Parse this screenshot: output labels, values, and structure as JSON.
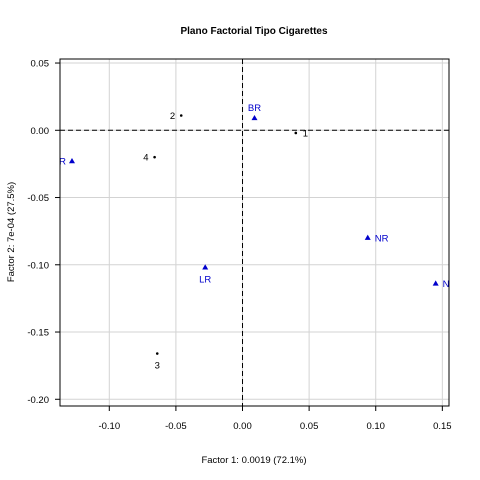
{
  "chart_data": {
    "type": "scatter",
    "title": "Plano Factorial Tipo Cigarettes",
    "xlabel": "Factor 1: 0.0019 (72.1%)",
    "ylabel": "Factor 2: 7e-04 (27.5%)",
    "xlim": [
      -0.137,
      0.155
    ],
    "ylim": [
      -0.205,
      0.053
    ],
    "xticks": [
      -0.1,
      -0.05,
      0.0,
      0.05,
      0.1,
      0.15
    ],
    "xtick_labels": [
      "-0.10",
      "-0.05",
      "0.00",
      "0.05",
      "0.10",
      "0.15"
    ],
    "yticks": [
      0.05,
      0.0,
      -0.05,
      -0.1,
      -0.15,
      -0.2
    ],
    "ytick_labels": [
      "0.05",
      "0.00",
      "-0.05",
      "-0.10",
      "-0.15",
      "-0.20"
    ],
    "grid": true,
    "reference_lines": {
      "x": 0,
      "y": 0,
      "style": "dashed"
    },
    "colors": {
      "rows": "#000000",
      "columns": "#0000cc",
      "grid": "#d3d3d3"
    },
    "series": [
      {
        "marker": "dot",
        "color": "#000000",
        "points": [
          {
            "label": "1",
            "x": 0.04,
            "y": -0.002,
            "label_pos": "right"
          },
          {
            "label": "2",
            "x": -0.046,
            "y": 0.011,
            "label_pos": "left"
          },
          {
            "label": "3",
            "x": -0.064,
            "y": -0.166,
            "label_pos": "below"
          },
          {
            "label": "4",
            "x": -0.066,
            "y": -0.02,
            "label_pos": "left"
          }
        ]
      },
      {
        "marker": "triangle",
        "color": "#0000cc",
        "points": [
          {
            "label": "BR",
            "x": 0.009,
            "y": 0.009,
            "label_pos": "above"
          },
          {
            "label": "R",
            "x": -0.128,
            "y": -0.023,
            "label_pos": "left"
          },
          {
            "label": "LR",
            "x": -0.028,
            "y": -0.102,
            "label_pos": "below"
          },
          {
            "label": "NR",
            "x": 0.094,
            "y": -0.08,
            "label_pos": "right"
          },
          {
            "label": "N",
            "x": 0.145,
            "y": -0.114,
            "label_pos": "right"
          }
        ]
      }
    ]
  }
}
